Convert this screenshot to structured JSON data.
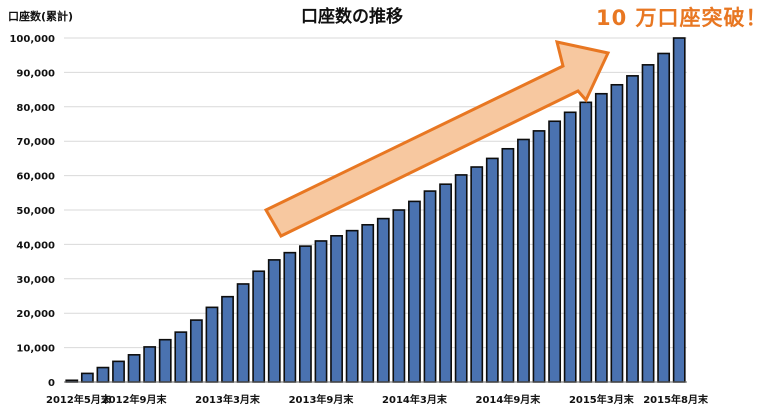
{
  "chart_data": {
    "type": "bar",
    "title": "口座数の推移",
    "ylabel": "口座数(累計)",
    "callout": "10 万口座突破！",
    "ylim": [
      0,
      100000
    ],
    "ytick_values": [
      0,
      10000,
      20000,
      30000,
      40000,
      50000,
      60000,
      70000,
      80000,
      90000,
      100000
    ],
    "ytick_labels": [
      "0",
      "10,000",
      "20,000",
      "30,000",
      "40,000",
      "50,000",
      "60,000",
      "70,000",
      "80,000",
      "90,000",
      "100,000"
    ],
    "xtick_labels": [
      {
        "index": 0,
        "label": "2012年5月末"
      },
      {
        "index": 4,
        "label": "2012年9月末"
      },
      {
        "index": 10,
        "label": "2013年3月末"
      },
      {
        "index": 16,
        "label": "2013年9月末"
      },
      {
        "index": 22,
        "label": "2014年3月末"
      },
      {
        "index": 28,
        "label": "2014年9月末"
      },
      {
        "index": 34,
        "label": "2015年3月末"
      },
      {
        "index": 39,
        "label": "2015年8月末"
      }
    ],
    "values": [
      500,
      2500,
      4200,
      6000,
      7900,
      10200,
      12300,
      14500,
      18000,
      21700,
      24800,
      28500,
      32200,
      35500,
      37600,
      39500,
      41000,
      42500,
      44000,
      45700,
      47500,
      50000,
      52500,
      55500,
      57500,
      60200,
      62500,
      65000,
      67800,
      70500,
      73000,
      75800,
      78400,
      81300,
      83800,
      86400,
      89000,
      92200,
      95500,
      100000
    ],
    "bar_color": "#4a72b0",
    "arrow_color": "#e87722",
    "callout_color": "#e87722",
    "grid": true
  }
}
